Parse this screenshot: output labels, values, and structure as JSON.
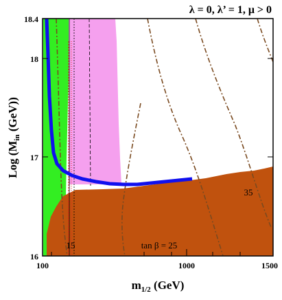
{
  "chart_data": {
    "type": "area",
    "title": "λ = 0, λ’ = 1,  μ > 0",
    "xlabel": "m",
    "xlabel_sub": "1/2",
    "xlabel_unit": " (GeV)",
    "ylabel": "Log (M",
    "ylabel_sub": "in",
    "ylabel_unit": " (GeV))",
    "xlim": [
      100,
      1500
    ],
    "ylim": [
      16,
      18.4
    ],
    "x_scale": "log",
    "x_tick_labels": [
      "100",
      "1000",
      "1500"
    ],
    "x_ticks": [
      100,
      1000,
      1500
    ],
    "y_tick_labels": [
      "16",
      "17",
      "18",
      "18.4"
    ],
    "y_ticks": [
      16,
      17,
      18,
      18.4
    ],
    "annotations": [
      {
        "text": "15",
        "x": 143,
        "y": 16.12
      },
      {
        "text": "tan β = 25",
        "x": 420,
        "y": 16.12
      },
      {
        "text": "35",
        "x": 1200,
        "y": 16.52
      }
    ],
    "colors": {
      "green": "#33ee22",
      "pink": "#f5a0ee",
      "brown": "#c0520e",
      "blue": "#1010ee",
      "red": "#ee2020",
      "dashdot": "#7a4a20"
    },
    "regions": [
      {
        "name": "green",
        "x": [
          103,
          142
        ],
        "y_range": [
          16.0,
          18.4
        ]
      },
      {
        "name": "pink",
        "x": [
          180,
          330
        ],
        "y_range": [
          16.7,
          18.4
        ]
      },
      {
        "name": "brown",
        "boundary_y": [
          16.62,
          16.67,
          16.72,
          16.76,
          16.85
        ]
      }
    ],
    "blue_band": {
      "x": [
        117,
        120,
        124,
        128,
        132,
        140,
        160,
        200,
        300,
        500,
        700
      ],
      "y": [
        18.4,
        17.8,
        17.3,
        17.05,
        16.92,
        16.82,
        16.77,
        16.73,
        16.71,
        16.73,
        16.78
      ]
    }
  }
}
